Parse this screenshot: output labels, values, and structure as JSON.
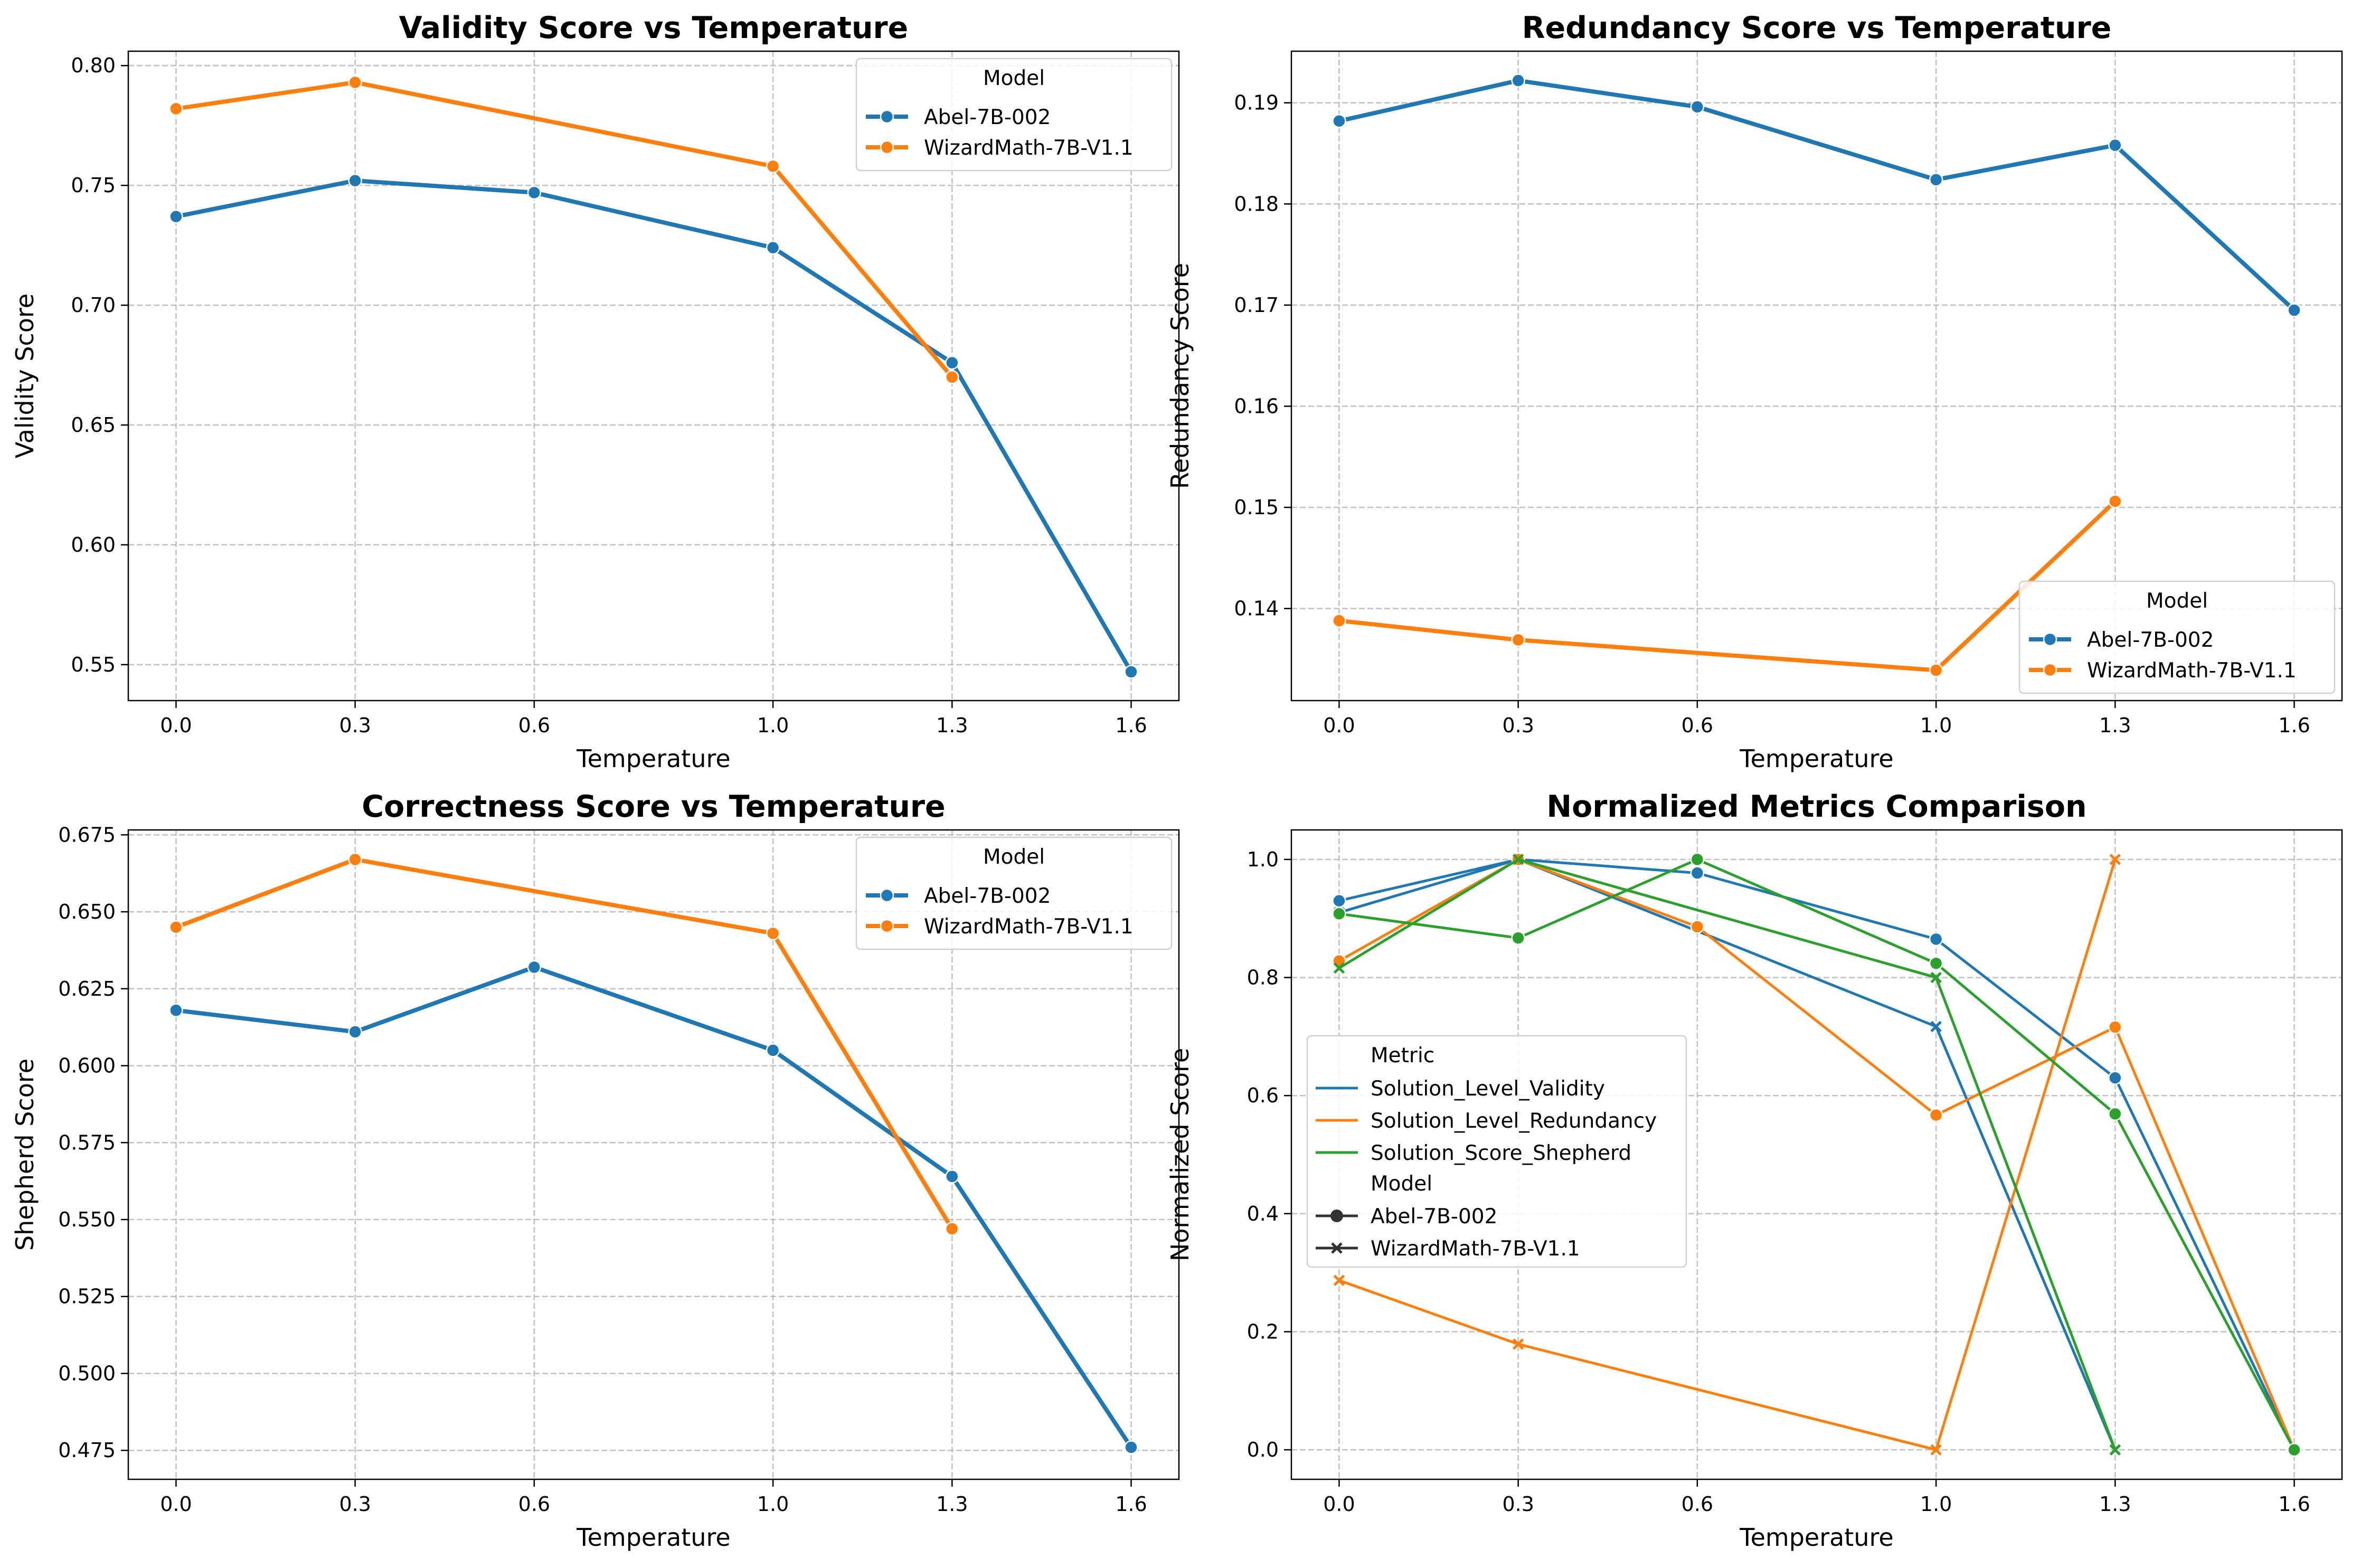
{
  "chart_data": [
    {
      "type": "line",
      "title": "Validity Score vs Temperature",
      "xlabel": "Temperature",
      "ylabel": "Validity Score",
      "x_ticks": [
        "0.0",
        "0.3",
        "0.6",
        "1.0",
        "1.3",
        "1.6"
      ],
      "y_ticks": [
        "0.55",
        "0.60",
        "0.65",
        "0.70",
        "0.75",
        "0.80"
      ],
      "xlim": [
        -0.08,
        1.68
      ],
      "ylim": [
        0.535,
        0.806
      ],
      "grid": true,
      "legend": {
        "title": "Model",
        "placement": "top-right"
      },
      "series": [
        {
          "name": "Abel-7B-002",
          "color": "#1f77b4",
          "marker": "circle",
          "x": [
            0.0,
            0.3,
            0.6,
            1.0,
            1.3,
            1.6
          ],
          "y": [
            0.737,
            0.752,
            0.747,
            0.724,
            0.676,
            0.547
          ]
        },
        {
          "name": "WizardMath-7B-V1.1",
          "color": "#ff7f0e",
          "marker": "circle",
          "x": [
            0.0,
            0.3,
            1.0,
            1.3
          ],
          "y": [
            0.782,
            0.793,
            0.758,
            0.67
          ]
        }
      ]
    },
    {
      "type": "line",
      "title": "Redundancy Score vs Temperature",
      "xlabel": "Temperature",
      "ylabel": "Redundancy Score",
      "x_ticks": [
        "0.0",
        "0.3",
        "0.6",
        "1.0",
        "1.3",
        "1.6"
      ],
      "y_ticks": [
        "0.14",
        "0.15",
        "0.16",
        "0.17",
        "0.18",
        "0.19"
      ],
      "xlim": [
        -0.08,
        1.68
      ],
      "ylim": [
        0.1309,
        0.1951
      ],
      "grid": true,
      "legend": {
        "title": "Model",
        "placement": "bottom-right"
      },
      "series": [
        {
          "name": "Abel-7B-002",
          "color": "#1f77b4",
          "marker": "circle",
          "x": [
            0.0,
            0.3,
            0.6,
            1.0,
            1.3,
            1.6
          ],
          "y": [
            0.1882,
            0.1922,
            0.1896,
            0.1824,
            0.1858,
            0.1695
          ]
        },
        {
          "name": "WizardMath-7B-V1.1",
          "color": "#ff7f0e",
          "marker": "circle",
          "x": [
            0.0,
            0.3,
            1.0,
            1.3
          ],
          "y": [
            0.1388,
            0.1369,
            0.1339,
            0.1506
          ]
        }
      ]
    },
    {
      "type": "line",
      "title": "Correctness Score vs Temperature",
      "xlabel": "Temperature",
      "ylabel": "Shepherd Score",
      "x_ticks": [
        "0.0",
        "0.3",
        "0.6",
        "1.0",
        "1.3",
        "1.6"
      ],
      "y_ticks": [
        "0.475",
        "0.500",
        "0.525",
        "0.550",
        "0.575",
        "0.600",
        "0.625",
        "0.650",
        "0.675"
      ],
      "xlim": [
        -0.08,
        1.68
      ],
      "ylim": [
        0.4656,
        0.6766
      ],
      "grid": true,
      "legend": {
        "title": "Model",
        "placement": "top-right"
      },
      "series": [
        {
          "name": "Abel-7B-002",
          "color": "#1f77b4",
          "marker": "circle",
          "x": [
            0.0,
            0.3,
            0.6,
            1.0,
            1.3,
            1.6
          ],
          "y": [
            0.618,
            0.611,
            0.632,
            0.605,
            0.564,
            0.476
          ]
        },
        {
          "name": "WizardMath-7B-V1.1",
          "color": "#ff7f0e",
          "marker": "circle",
          "x": [
            0.0,
            0.3,
            1.0,
            1.3
          ],
          "y": [
            0.645,
            0.667,
            0.643,
            0.547
          ]
        }
      ]
    },
    {
      "type": "line",
      "title": "Normalized Metrics Comparison",
      "xlabel": "Temperature",
      "ylabel": "Normalized Score",
      "x_ticks": [
        "0.0",
        "0.3",
        "0.6",
        "1.0",
        "1.3",
        "1.6"
      ],
      "y_ticks": [
        "0.0",
        "0.2",
        "0.4",
        "0.6",
        "0.8",
        "1.0"
      ],
      "xlim": [
        -0.08,
        1.68
      ],
      "ylim": [
        -0.05,
        1.05
      ],
      "grid": true,
      "legend": {
        "placement": "center-left",
        "metric_title": "Metric",
        "metrics": [
          {
            "name": "Solution_Level_Validity",
            "color": "#1f77b4"
          },
          {
            "name": "Solution_Level_Redundancy",
            "color": "#ff7f0e"
          },
          {
            "name": "Solution_Score_Shepherd",
            "color": "#2ca02c"
          }
        ],
        "model_title": "Model",
        "models": [
          {
            "name": "Abel-7B-002",
            "marker": "circle"
          },
          {
            "name": "WizardMath-7B-V1.1",
            "marker": "x"
          }
        ]
      },
      "series": [
        {
          "name": "Solution_Level_Validity / Abel-7B-002",
          "color": "#1f77b4",
          "marker": "circle",
          "x": [
            0.0,
            0.3,
            0.6,
            1.0,
            1.3,
            1.6
          ],
          "y": [
            0.93,
            1.0,
            0.977,
            0.865,
            0.63,
            0.0
          ]
        },
        {
          "name": "Solution_Level_Validity / WizardMath-7B-V1.1",
          "color": "#1f77b4",
          "marker": "x",
          "x": [
            0.0,
            0.3,
            1.0,
            1.3
          ],
          "y": [
            0.91,
            1.0,
            0.717,
            0.0
          ]
        },
        {
          "name": "Solution_Level_Redundancy / Abel-7B-002",
          "color": "#ff7f0e",
          "marker": "circle",
          "x": [
            0.0,
            0.3,
            0.6,
            1.0,
            1.3,
            1.6
          ],
          "y": [
            0.828,
            1.0,
            0.886,
            0.567,
            0.716,
            0.0
          ]
        },
        {
          "name": "Solution_Level_Redundancy / WizardMath-7B-V1.1",
          "color": "#ff7f0e",
          "marker": "x",
          "x": [
            0.0,
            0.3,
            1.0,
            1.3
          ],
          "y": [
            0.287,
            0.179,
            0.0,
            1.0
          ]
        },
        {
          "name": "Solution_Score_Shepherd / Abel-7B-002",
          "color": "#2ca02c",
          "marker": "circle",
          "x": [
            0.0,
            0.3,
            0.6,
            1.0,
            1.3,
            1.6
          ],
          "y": [
            0.908,
            0.867,
            1.0,
            0.824,
            0.569,
            0.0
          ]
        },
        {
          "name": "Solution_Score_Shepherd / WizardMath-7B-V1.1",
          "color": "#2ca02c",
          "marker": "x",
          "x": [
            0.0,
            0.3,
            1.0,
            1.3
          ],
          "y": [
            0.816,
            1.0,
            0.8,
            0.0
          ]
        }
      ]
    }
  ]
}
